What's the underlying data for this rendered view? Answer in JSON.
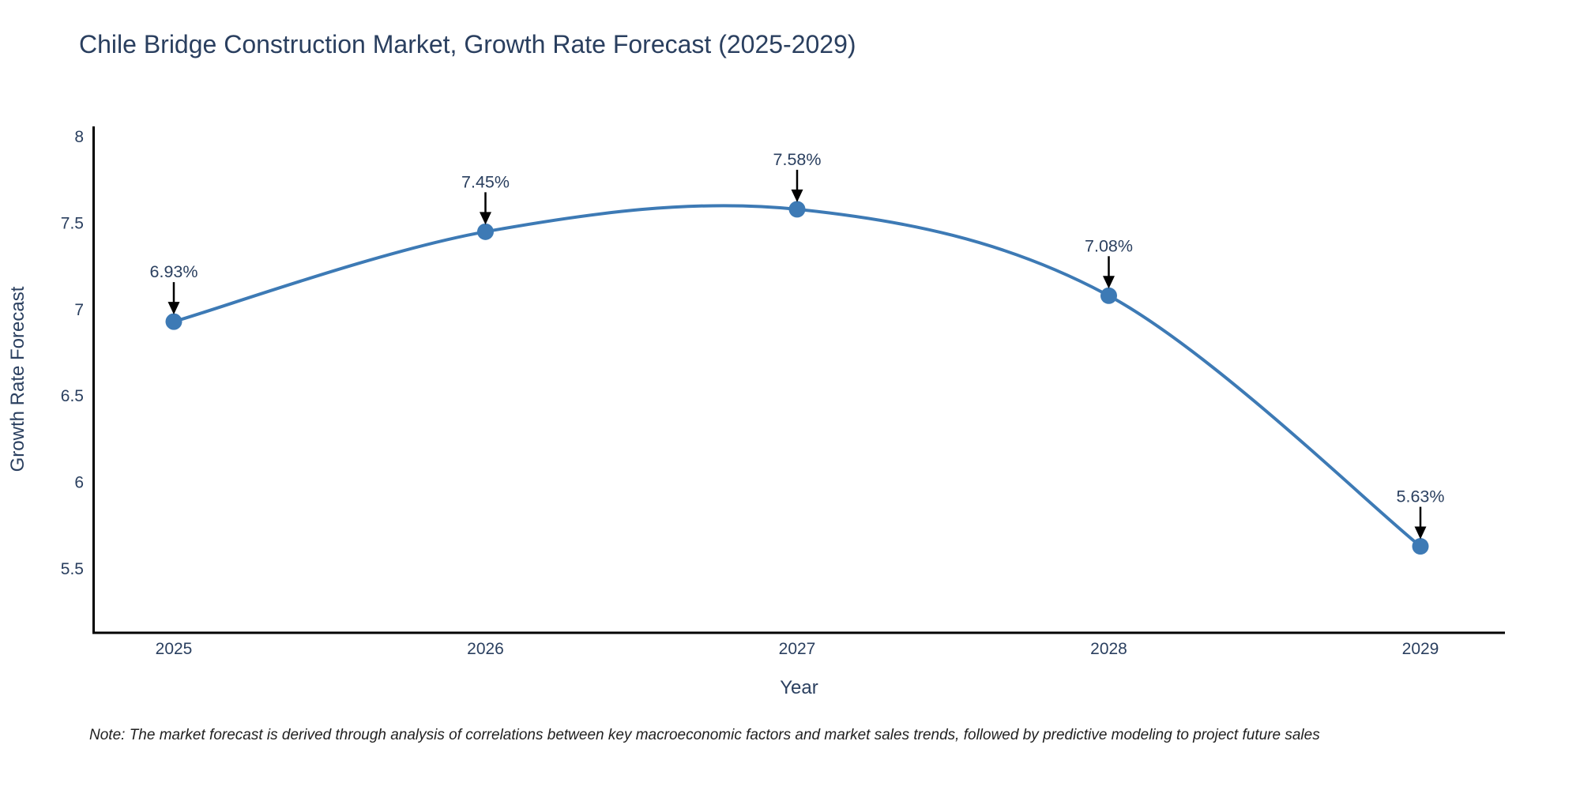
{
  "chart": {
    "title": "Chile Bridge Construction Market, Growth Rate Forecast (2025-2029)",
    "note": "Note: The market forecast is derived through analysis of correlations between key macroeconomic factors and market sales trends, followed by predictive modeling to project future sales"
  },
  "chart_data": {
    "type": "line",
    "title": "Chile Bridge Construction Market, Growth Rate Forecast (2025-2029)",
    "xlabel": "Year",
    "ylabel": "Growth Rate Forecast",
    "categories": [
      "2025",
      "2026",
      "2027",
      "2028",
      "2029"
    ],
    "series": [
      {
        "name": "Growth Rate Forecast",
        "values": [
          6.93,
          7.45,
          7.58,
          7.08,
          5.63
        ],
        "point_labels": [
          "6.93%",
          "7.45%",
          "7.58%",
          "7.08%",
          "5.63%"
        ]
      }
    ],
    "y_ticks": [
      8,
      7.5,
      7,
      6.5,
      6,
      5.5
    ],
    "ylim": [
      5.13,
      8.06
    ],
    "line_shape": "spline",
    "grid": false,
    "legend_visible": false,
    "annotations_have_arrows": true,
    "colors": {
      "line": "#3d7ab5",
      "marker": "#3d7ab5",
      "text": "#2a3f5f",
      "axis_line": "#000000",
      "arrow": "#000000",
      "note_text": "#1f1f1f",
      "background": "#ffffff"
    }
  }
}
